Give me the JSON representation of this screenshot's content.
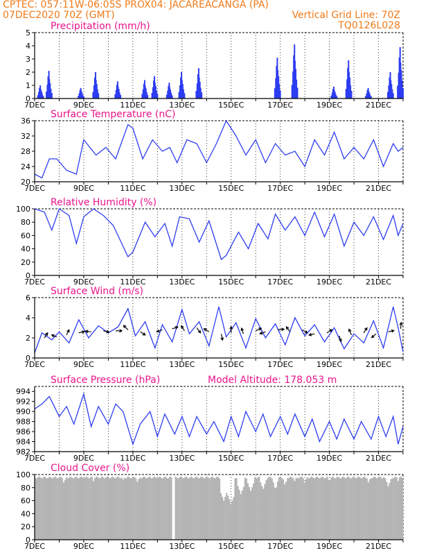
{
  "header": {
    "line1": "CPTEC:    057:11W-06:05S    PROX04: JACAREACANGA (PA)",
    "line2": "07DEC2020 70Z (GMT)",
    "grid_note": "Vertical Grid Line: 70Z",
    "code": "TQ0126L028"
  },
  "colors": {
    "header": "#f07a18",
    "title": "#e8148c",
    "line": "#2c3cf0",
    "bar": "#2c3cf0",
    "cloud": "#b4b4b4"
  },
  "chart_data": [
    {
      "type": "bar",
      "title": "Precipitation (mm/h)",
      "x_tick_labels": [
        "7DEC",
        "9DEC",
        "11DEC",
        "13DEC",
        "15DEC",
        "17DEC",
        "19DEC",
        "21DEC"
      ],
      "ylim": [
        0,
        5
      ],
      "y_ticks": [
        0,
        1,
        2,
        3,
        4,
        5
      ],
      "x_range_days": [
        7,
        22
      ],
      "grid": "vertical-dotted",
      "bursts": [
        {
          "day": 7.25,
          "peak": 1.0
        },
        {
          "day": 7.6,
          "peak": 2.1
        },
        {
          "day": 8.9,
          "peak": 0.8
        },
        {
          "day": 9.5,
          "peak": 2.0
        },
        {
          "day": 10.4,
          "peak": 1.3
        },
        {
          "day": 11.5,
          "peak": 1.4
        },
        {
          "day": 11.9,
          "peak": 1.7
        },
        {
          "day": 12.5,
          "peak": 1.2
        },
        {
          "day": 13.0,
          "peak": 2.0
        },
        {
          "day": 13.7,
          "peak": 2.3
        },
        {
          "day": 16.9,
          "peak": 3.1
        },
        {
          "day": 17.6,
          "peak": 4.1
        },
        {
          "day": 19.2,
          "peak": 0.9
        },
        {
          "day": 19.8,
          "peak": 2.9
        },
        {
          "day": 20.6,
          "peak": 0.8
        },
        {
          "day": 21.5,
          "peak": 2.0
        },
        {
          "day": 21.9,
          "peak": 3.9
        }
      ]
    },
    {
      "type": "line",
      "title": "Surface Temperature (nC)",
      "x_tick_labels": [
        "7DEC",
        "9DEC",
        "11DEC",
        "13DEC",
        "15DEC",
        "17DEC",
        "19DEC",
        "21DEC"
      ],
      "ylim": [
        20,
        36
      ],
      "y_ticks": [
        20,
        24,
        28,
        32,
        36
      ],
      "x_range_days": [
        7,
        22
      ],
      "x": [
        7.0,
        7.3,
        7.6,
        7.9,
        8.3,
        8.7,
        9.0,
        9.5,
        9.9,
        10.3,
        10.8,
        11.0,
        11.4,
        11.8,
        12.2,
        12.5,
        12.8,
        13.2,
        13.6,
        14.0,
        14.4,
        14.8,
        15.2,
        15.6,
        16.0,
        16.4,
        16.8,
        17.2,
        17.6,
        18.0,
        18.4,
        18.8,
        19.2,
        19.6,
        20.0,
        20.4,
        20.8,
        21.2,
        21.6,
        21.8,
        22.0
      ],
      "y": [
        22,
        21,
        26,
        26,
        23,
        22,
        31,
        27,
        29,
        26,
        35,
        34,
        26,
        31,
        28,
        29,
        25,
        31,
        30,
        25,
        30,
        36,
        32,
        27,
        31,
        25,
        30,
        27,
        28,
        24,
        31,
        27,
        33,
        26,
        29,
        26,
        31,
        24,
        30,
        28,
        29
      ]
    },
    {
      "type": "line",
      "title": "Relative Humidity (%)",
      "x_tick_labels": [
        "7DEC",
        "9DEC",
        "11DEC",
        "13DEC",
        "15DEC",
        "17DEC",
        "19DEC",
        "21DEC"
      ],
      "ylim": [
        0,
        100
      ],
      "y_ticks": [
        0,
        20,
        40,
        60,
        80,
        100
      ],
      "x_range_days": [
        7,
        22
      ],
      "x": [
        7.0,
        7.4,
        7.7,
        8.0,
        8.4,
        8.7,
        9.0,
        9.4,
        9.8,
        10.2,
        10.8,
        11.0,
        11.5,
        11.9,
        12.3,
        12.6,
        12.9,
        13.3,
        13.7,
        14.1,
        14.6,
        14.8,
        15.3,
        15.7,
        16.1,
        16.5,
        16.8,
        17.2,
        17.6,
        18.0,
        18.4,
        18.8,
        19.2,
        19.6,
        20.0,
        20.4,
        20.8,
        21.2,
        21.6,
        21.8,
        22.0
      ],
      "y": [
        100,
        95,
        68,
        100,
        90,
        48,
        88,
        100,
        90,
        75,
        28,
        35,
        80,
        58,
        78,
        44,
        88,
        85,
        50,
        82,
        24,
        30,
        65,
        40,
        78,
        55,
        92,
        68,
        88,
        60,
        95,
        58,
        92,
        44,
        80,
        60,
        88,
        54,
        90,
        60,
        78
      ]
    },
    {
      "type": "line",
      "title": "Surface Wind (m/s)",
      "x_tick_labels": [
        "7DEC",
        "9DEC",
        "11DEC",
        "13DEC",
        "15DEC",
        "17DEC",
        "19DEC",
        "21DEC"
      ],
      "ylim": [
        0,
        6
      ],
      "y_ticks": [
        0,
        2,
        4,
        6
      ],
      "x_range_days": [
        7,
        22
      ],
      "x": [
        7.0,
        7.3,
        7.7,
        8.0,
        8.4,
        8.8,
        9.2,
        9.6,
        10.0,
        10.4,
        10.8,
        11.1,
        11.5,
        11.9,
        12.2,
        12.6,
        13.0,
        13.3,
        13.7,
        14.1,
        14.5,
        14.8,
        15.2,
        15.6,
        16.0,
        16.4,
        16.8,
        17.2,
        17.6,
        18.0,
        18.4,
        18.8,
        19.2,
        19.6,
        20.0,
        20.4,
        20.8,
        21.2,
        21.6,
        21.8,
        22.0
      ],
      "y": [
        0.5,
        2.5,
        1.8,
        2.6,
        1.5,
        3.8,
        2.0,
        3.2,
        2.5,
        3.1,
        4.9,
        2.2,
        3.6,
        1.0,
        3.3,
        1.6,
        4.8,
        2.4,
        3.6,
        1.2,
        5.1,
        2.1,
        3.5,
        1.0,
        3.9,
        2.0,
        3.4,
        1.3,
        4.0,
        2.2,
        3.3,
        1.6,
        3.0,
        0.9,
        2.4,
        1.5,
        3.7,
        1.0,
        5.1,
        3.0,
        0.6
      ],
      "arrows": [
        {
          "day": 7.4,
          "speed": 2.0,
          "dx": 0.5,
          "dy": 0.8
        },
        {
          "day": 7.9,
          "speed": 2.1,
          "dx": -0.8,
          "dy": 0.3
        },
        {
          "day": 8.3,
          "speed": 2.3,
          "dx": 0.4,
          "dy": 0.8
        },
        {
          "day": 8.8,
          "speed": 2.5,
          "dx": 0.9,
          "dy": 0.2
        },
        {
          "day": 9.3,
          "speed": 2.6,
          "dx": -0.9,
          "dy": 0.1
        },
        {
          "day": 9.8,
          "speed": 2.7,
          "dx": 0.9,
          "dy": -0.2
        },
        {
          "day": 10.3,
          "speed": 2.7,
          "dx": 1.0,
          "dy": 0.0
        },
        {
          "day": 10.8,
          "speed": 2.8,
          "dx": -0.7,
          "dy": 0.7
        },
        {
          "day": 11.3,
          "speed": 2.6,
          "dx": 0.8,
          "dy": -0.5
        },
        {
          "day": 12.2,
          "speed": 2.8,
          "dx": -0.9,
          "dy": -0.3
        },
        {
          "day": 12.6,
          "speed": 2.9,
          "dx": 0.9,
          "dy": 0.3
        },
        {
          "day": 13.1,
          "speed": 2.7,
          "dx": -0.5,
          "dy": 0.8
        },
        {
          "day": 13.6,
          "speed": 3.0,
          "dx": 0.6,
          "dy": -0.8
        },
        {
          "day": 14.1,
          "speed": 2.6,
          "dx": -0.8,
          "dy": 0.5
        },
        {
          "day": 14.6,
          "speed": 2.4,
          "dx": 0.2,
          "dy": -1.0
        },
        {
          "day": 15.0,
          "speed": 2.5,
          "dx": 0.0,
          "dy": 1.0
        },
        {
          "day": 15.5,
          "speed": 2.4,
          "dx": -0.3,
          "dy": 0.9
        },
        {
          "day": 16.0,
          "speed": 2.7,
          "dx": 0.9,
          "dy": 0.4
        },
        {
          "day": 16.4,
          "speed": 2.6,
          "dx": -0.9,
          "dy": -0.3
        },
        {
          "day": 16.9,
          "speed": 2.8,
          "dx": 1.0,
          "dy": 0.1
        },
        {
          "day": 17.4,
          "speed": 2.6,
          "dx": -0.6,
          "dy": 0.8
        },
        {
          "day": 17.9,
          "speed": 2.8,
          "dx": 0.8,
          "dy": -0.5
        },
        {
          "day": 18.4,
          "speed": 2.4,
          "dx": -0.9,
          "dy": -0.2
        },
        {
          "day": 18.9,
          "speed": 2.5,
          "dx": 0.8,
          "dy": 0.5
        },
        {
          "day": 19.4,
          "speed": 2.2,
          "dx": 0.3,
          "dy": -0.9
        },
        {
          "day": 19.9,
          "speed": 2.3,
          "dx": -0.4,
          "dy": 0.9
        },
        {
          "day": 20.4,
          "speed": 2.5,
          "dx": 0.5,
          "dy": 0.8
        },
        {
          "day": 20.9,
          "speed": 2.4,
          "dx": -0.7,
          "dy": -0.6
        },
        {
          "day": 21.4,
          "speed": 2.6,
          "dx": 0.9,
          "dy": 0.2
        },
        {
          "day": 21.9,
          "speed": 2.9,
          "dx": 0.1,
          "dy": 1.0
        }
      ]
    },
    {
      "type": "line",
      "title": "Surface Pressure (hPa)",
      "annotation": "Model Altitude: 178.053 m",
      "x_tick_labels": [
        "7DEC",
        "9DEC",
        "11DEC",
        "13DEC",
        "15DEC",
        "17DEC",
        "19DEC",
        "21DEC"
      ],
      "ylim": [
        982,
        995
      ],
      "y_ticks": [
        982,
        984,
        986,
        988,
        990,
        992,
        994
      ],
      "x_range_days": [
        7,
        22
      ],
      "x": [
        7.0,
        7.3,
        7.6,
        8.0,
        8.3,
        8.6,
        9.0,
        9.3,
        9.6,
        10.0,
        10.3,
        10.6,
        11.0,
        11.3,
        11.7,
        12.0,
        12.3,
        12.7,
        13.0,
        13.3,
        13.6,
        14.0,
        14.3,
        14.7,
        15.0,
        15.3,
        15.6,
        16.0,
        16.3,
        16.6,
        17.0,
        17.3,
        17.6,
        18.0,
        18.3,
        18.6,
        19.0,
        19.3,
        19.6,
        20.0,
        20.3,
        20.7,
        21.0,
        21.3,
        21.6,
        21.8,
        22.0
      ],
      "y": [
        990.5,
        991.5,
        993.0,
        989.0,
        991.0,
        987.5,
        993.5,
        987.0,
        991.0,
        987.5,
        991.5,
        990.0,
        983.5,
        987.5,
        990.0,
        985.0,
        989.5,
        985.5,
        989.0,
        985.0,
        989.0,
        985.5,
        988.0,
        984.0,
        989.0,
        985.0,
        990.0,
        986.0,
        989.5,
        985.0,
        989.0,
        985.5,
        989.5,
        985.0,
        988.5,
        984.0,
        988.0,
        984.5,
        988.5,
        984.5,
        988.0,
        984.5,
        989.0,
        985.0,
        989.0,
        983.5,
        987.0
      ]
    },
    {
      "type": "bar",
      "title": "Cloud Cover (%)",
      "x_tick_labels": [
        "7DEC",
        "9DEC",
        "11DEC",
        "13DEC",
        "15DEC",
        "17DEC",
        "19DEC",
        "21DEC"
      ],
      "ylim": [
        0,
        100
      ],
      "y_ticks": [
        0,
        20,
        40,
        60,
        80,
        100
      ],
      "x_range_days": [
        7,
        22
      ],
      "base_level": 97,
      "dips": [
        {
          "day": 8.2,
          "value": 88
        },
        {
          "day": 9.4,
          "value": 90
        },
        {
          "day": 10.6,
          "value": 92
        },
        {
          "day": 11.2,
          "value": 89
        },
        {
          "day": 12.65,
          "value": 0
        },
        {
          "day": 14.7,
          "value": 60
        },
        {
          "day": 15.0,
          "value": 55
        },
        {
          "day": 15.4,
          "value": 70
        },
        {
          "day": 15.8,
          "value": 75
        },
        {
          "day": 16.3,
          "value": 78
        },
        {
          "day": 16.8,
          "value": 80
        },
        {
          "day": 17.2,
          "value": 85
        },
        {
          "day": 17.6,
          "value": 90
        },
        {
          "day": 18.0,
          "value": 88
        },
        {
          "day": 19.0,
          "value": 92
        },
        {
          "day": 20.6,
          "value": 88
        },
        {
          "day": 21.4,
          "value": 82
        },
        {
          "day": 21.8,
          "value": 90
        }
      ]
    }
  ]
}
